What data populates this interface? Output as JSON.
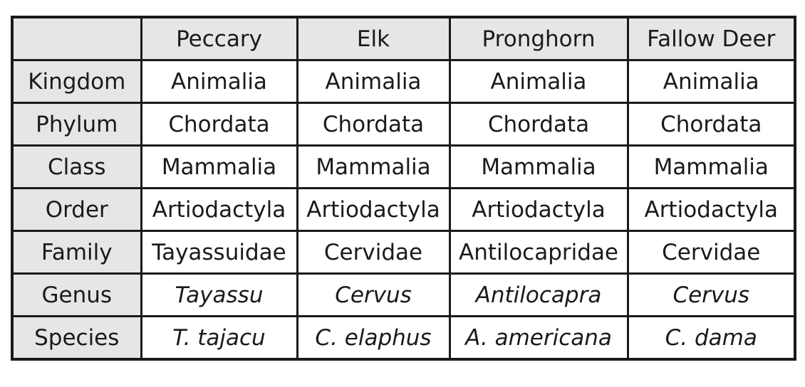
{
  "table": {
    "corner": "",
    "columns": [
      "Peccary",
      "Elk",
      "Pronghorn",
      "Fallow Deer"
    ],
    "rows": [
      {
        "rank": "Kingdom",
        "italic": false,
        "values": [
          "Animalia",
          "Animalia",
          "Animalia",
          "Animalia"
        ]
      },
      {
        "rank": "Phylum",
        "italic": false,
        "values": [
          "Chordata",
          "Chordata",
          "Chordata",
          "Chordata"
        ]
      },
      {
        "rank": "Class",
        "italic": false,
        "values": [
          "Mammalia",
          "Mammalia",
          "Mammalia",
          "Mammalia"
        ]
      },
      {
        "rank": "Order",
        "italic": false,
        "values": [
          "Artiodactyla",
          "Artiodactyla",
          "Artiodactyla",
          "Artiodactyla"
        ]
      },
      {
        "rank": "Family",
        "italic": false,
        "values": [
          "Tayassuidae",
          "Cervidae",
          "Antilocapridae",
          "Cervidae"
        ]
      },
      {
        "rank": "Genus",
        "italic": true,
        "values": [
          "Tayassu",
          "Cervus",
          "Antilocapra",
          "Cervus"
        ]
      },
      {
        "rank": "Species",
        "italic": true,
        "values": [
          "T. tajacu",
          "C. elaphus",
          "A. americana",
          "C. dama"
        ]
      }
    ]
  },
  "colors": {
    "header_bg": "#e6e6e6",
    "cell_bg": "#ffffff",
    "border": "#1a1a1a",
    "text": "#1a1a1a"
  }
}
